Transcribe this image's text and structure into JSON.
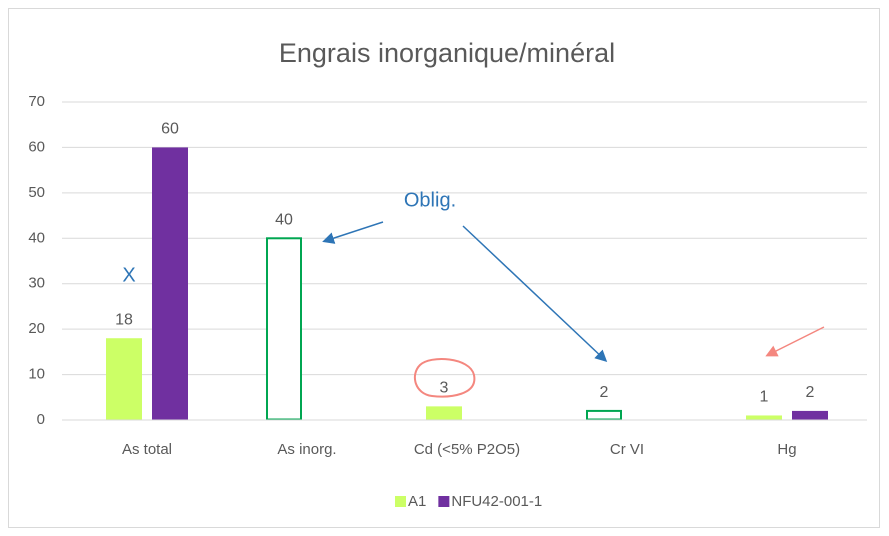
{
  "chart_data": {
    "type": "bar",
    "title": "Engrais inorganique/minéral",
    "categories": [
      "As total",
      "As inorg.",
      "Cd (<5% P2O5)",
      "Cr VI",
      "Hg"
    ],
    "series": [
      {
        "name": "A1",
        "color": "#ccff66",
        "outline_color": "#00a651",
        "outlined": [
          false,
          true,
          false,
          true,
          false
        ],
        "values": [
          18,
          40,
          3,
          2,
          1
        ]
      },
      {
        "name": "NFU42-001-1",
        "color": "#7030a0",
        "values": [
          60,
          null,
          null,
          null,
          2
        ]
      }
    ],
    "ylim": [
      0,
      70
    ],
    "yticks": [
      0,
      10,
      20,
      30,
      40,
      50,
      60,
      70
    ],
    "grid": true,
    "legend": "bottom",
    "annotations": [
      "X",
      "Oblig."
    ]
  }
}
